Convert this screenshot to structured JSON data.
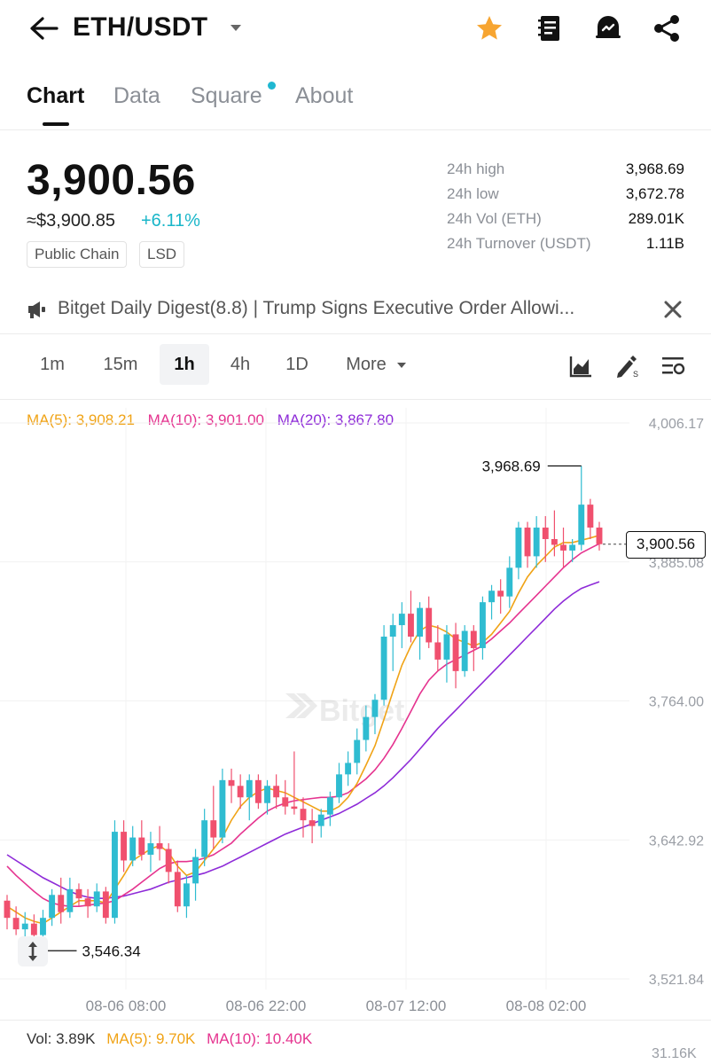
{
  "header": {
    "pair": "ETH/USDT",
    "icons": [
      "back-arrow-icon",
      "caret-down-icon",
      "star-icon",
      "notebook-icon",
      "alert-bell-icon",
      "share-icon"
    ],
    "star_color": "#f7a531"
  },
  "tabs": [
    {
      "label": "Chart",
      "active": true
    },
    {
      "label": "Data",
      "active": false
    },
    {
      "label": "Square",
      "active": false,
      "dot": true
    },
    {
      "label": "About",
      "active": false
    }
  ],
  "ticker": {
    "last_price": "3,900.56",
    "usd_price": "≈$3,900.85",
    "change": "+6.11%",
    "change_color": "#19b6c9",
    "tags": [
      "Public Chain",
      "LSD"
    ]
  },
  "stats": [
    {
      "label": "24h high",
      "value": "3,968.69"
    },
    {
      "label": "24h low",
      "value": "3,672.78"
    },
    {
      "label": "24h Vol (ETH)",
      "value": "289.01K"
    },
    {
      "label": "24h Turnover (USDT)",
      "value": "1.11B"
    }
  ],
  "news": {
    "text": "Bitget Daily Digest(8.8) | Trump Signs Executive Order Allowi..."
  },
  "intervals": [
    {
      "label": "1m",
      "active": false
    },
    {
      "label": "15m",
      "active": false
    },
    {
      "label": "1h",
      "active": true
    },
    {
      "label": "4h",
      "active": false
    },
    {
      "label": "1D",
      "active": false
    },
    {
      "label": "More",
      "active": false
    }
  ],
  "indicators": {
    "ma5": "MA(5): 3,908.21",
    "ma10": "MA(10): 3,901.00",
    "ma20": "MA(20): 3,867.80",
    "ma5_color": "#f0a316",
    "ma10_color": "#e5338f",
    "ma20_color": "#8e2bd8"
  },
  "volume": {
    "vol": "Vol: 3.89K",
    "ma5": "MA(5): 9.70K",
    "ma10": "MA(10): 10.40K",
    "axis_top": "31.16K"
  },
  "chart_data": {
    "type": "candlestick",
    "y_ticks": [
      "4,006.17",
      "3,885.08",
      "3,764.00",
      "3,642.92",
      "3,521.84"
    ],
    "ylim": [
      3521.84,
      4006.17
    ],
    "x_ticks": [
      "08-06 08:00",
      "08-06 22:00",
      "08-07 12:00",
      "08-08 02:00"
    ],
    "current_price": "3,900.56",
    "max_label": "3,968.69",
    "min_label": "3,546.34",
    "up_color": "#2fbcd1",
    "down_color": "#f0506e",
    "candles": [
      [
        3590,
        3595,
        3565,
        3575
      ],
      [
        3575,
        3585,
        3560,
        3565
      ],
      [
        3565,
        3580,
        3555,
        3570
      ],
      [
        3570,
        3578,
        3550,
        3560
      ],
      [
        3560,
        3582,
        3546.34,
        3575
      ],
      [
        3575,
        3600,
        3568,
        3595
      ],
      [
        3595,
        3610,
        3570,
        3580
      ],
      [
        3580,
        3610,
        3575,
        3600
      ],
      [
        3600,
        3605,
        3585,
        3592
      ],
      [
        3592,
        3600,
        3575,
        3585
      ],
      [
        3585,
        3605,
        3580,
        3598
      ],
      [
        3598,
        3602,
        3570,
        3575
      ],
      [
        3575,
        3660,
        3570,
        3650
      ],
      [
        3650,
        3660,
        3615,
        3625
      ],
      [
        3625,
        3655,
        3620,
        3645
      ],
      [
        3645,
        3660,
        3625,
        3630
      ],
      [
        3630,
        3650,
        3615,
        3640
      ],
      [
        3640,
        3655,
        3625,
        3635
      ],
      [
        3635,
        3640,
        3605,
        3615
      ],
      [
        3615,
        3625,
        3580,
        3585
      ],
      [
        3585,
        3612,
        3575,
        3605
      ],
      [
        3605,
        3635,
        3590,
        3628
      ],
      [
        3628,
        3670,
        3620,
        3660
      ],
      [
        3660,
        3690,
        3635,
        3645
      ],
      [
        3645,
        3705,
        3640,
        3695
      ],
      [
        3695,
        3705,
        3675,
        3690
      ],
      [
        3690,
        3700,
        3670,
        3680
      ],
      [
        3680,
        3700,
        3660,
        3695
      ],
      [
        3695,
        3700,
        3670,
        3675
      ],
      [
        3675,
        3695,
        3665,
        3690
      ],
      [
        3690,
        3700,
        3670,
        3680
      ],
      [
        3680,
        3695,
        3665,
        3672
      ],
      [
        3672,
        3720,
        3665,
        3670
      ],
      [
        3670,
        3680,
        3645,
        3660
      ],
      [
        3660,
        3670,
        3640,
        3655
      ],
      [
        3655,
        3670,
        3645,
        3665
      ],
      [
        3665,
        3685,
        3655,
        3680
      ],
      [
        3680,
        3710,
        3675,
        3700
      ],
      [
        3700,
        3720,
        3690,
        3710
      ],
      [
        3710,
        3740,
        3700,
        3730
      ],
      [
        3730,
        3760,
        3720,
        3750
      ],
      [
        3750,
        3770,
        3735,
        3765
      ],
      [
        3765,
        3830,
        3760,
        3820
      ],
      [
        3820,
        3840,
        3790,
        3830
      ],
      [
        3830,
        3850,
        3810,
        3840
      ],
      [
        3840,
        3860,
        3815,
        3820
      ],
      [
        3820,
        3850,
        3800,
        3845
      ],
      [
        3845,
        3855,
        3810,
        3815
      ],
      [
        3815,
        3830,
        3790,
        3800
      ],
      [
        3800,
        3830,
        3780,
        3822
      ],
      [
        3822,
        3832,
        3775,
        3790
      ],
      [
        3790,
        3830,
        3785,
        3825
      ],
      [
        3825,
        3830,
        3790,
        3810
      ],
      [
        3810,
        3855,
        3800,
        3850
      ],
      [
        3850,
        3865,
        3835,
        3860
      ],
      [
        3860,
        3870,
        3840,
        3855
      ],
      [
        3855,
        3890,
        3845,
        3880
      ],
      [
        3880,
        3920,
        3870,
        3915
      ],
      [
        3915,
        3920,
        3880,
        3890
      ],
      [
        3890,
        3925,
        3880,
        3915
      ],
      [
        3915,
        3925,
        3885,
        3905
      ],
      [
        3905,
        3930,
        3890,
        3900
      ],
      [
        3900,
        3915,
        3880,
        3895
      ],
      [
        3895,
        3905,
        3885,
        3900
      ],
      [
        3900,
        3968.69,
        3895,
        3935
      ],
      [
        3935,
        3940,
        3905,
        3915
      ],
      [
        3915,
        3920,
        3895,
        3900.56
      ]
    ],
    "ma5_line": [
      3585,
      3580,
      3575,
      3572,
      3570,
      3575,
      3580,
      3585,
      3590,
      3590,
      3590,
      3588,
      3600,
      3612,
      3625,
      3630,
      3635,
      3638,
      3632,
      3620,
      3612,
      3615,
      3625,
      3635,
      3645,
      3660,
      3672,
      3680,
      3685,
      3688,
      3686,
      3684,
      3680,
      3676,
      3672,
      3668,
      3668,
      3672,
      3680,
      3692,
      3708,
      3725,
      3748,
      3772,
      3795,
      3812,
      3825,
      3830,
      3828,
      3824,
      3818,
      3815,
      3812,
      3815,
      3822,
      3832,
      3842,
      3858,
      3872,
      3882,
      3890,
      3898,
      3902,
      3902,
      3904,
      3906,
      3908.21
    ],
    "ma10_line": [
      3620,
      3612,
      3605,
      3598,
      3592,
      3588,
      3586,
      3585,
      3585,
      3586,
      3587,
      3588,
      3590,
      3595,
      3600,
      3606,
      3612,
      3618,
      3622,
      3624,
      3624,
      3625,
      3627,
      3630,
      3635,
      3640,
      3648,
      3655,
      3662,
      3668,
      3672,
      3675,
      3677,
      3678,
      3679,
      3680,
      3680,
      3681,
      3684,
      3690,
      3696,
      3704,
      3714,
      3726,
      3740,
      3755,
      3770,
      3782,
      3790,
      3796,
      3800,
      3804,
      3808,
      3812,
      3818,
      3825,
      3832,
      3840,
      3848,
      3856,
      3864,
      3872,
      3880,
      3887,
      3893,
      3897,
      3901.0
    ],
    "ma20_line": [
      3630,
      3625,
      3620,
      3615,
      3610,
      3606,
      3602,
      3598,
      3595,
      3593,
      3592,
      3592,
      3593,
      3594,
      3596,
      3598,
      3600,
      3603,
      3606,
      3608,
      3610,
      3612,
      3614,
      3617,
      3620,
      3624,
      3628,
      3632,
      3636,
      3640,
      3644,
      3648,
      3651,
      3654,
      3657,
      3660,
      3663,
      3666,
      3670,
      3674,
      3679,
      3684,
      3690,
      3697,
      3705,
      3713,
      3722,
      3731,
      3740,
      3748,
      3756,
      3764,
      3772,
      3780,
      3788,
      3796,
      3804,
      3812,
      3820,
      3828,
      3836,
      3844,
      3851,
      3857,
      3862,
      3865,
      3867.8
    ]
  }
}
